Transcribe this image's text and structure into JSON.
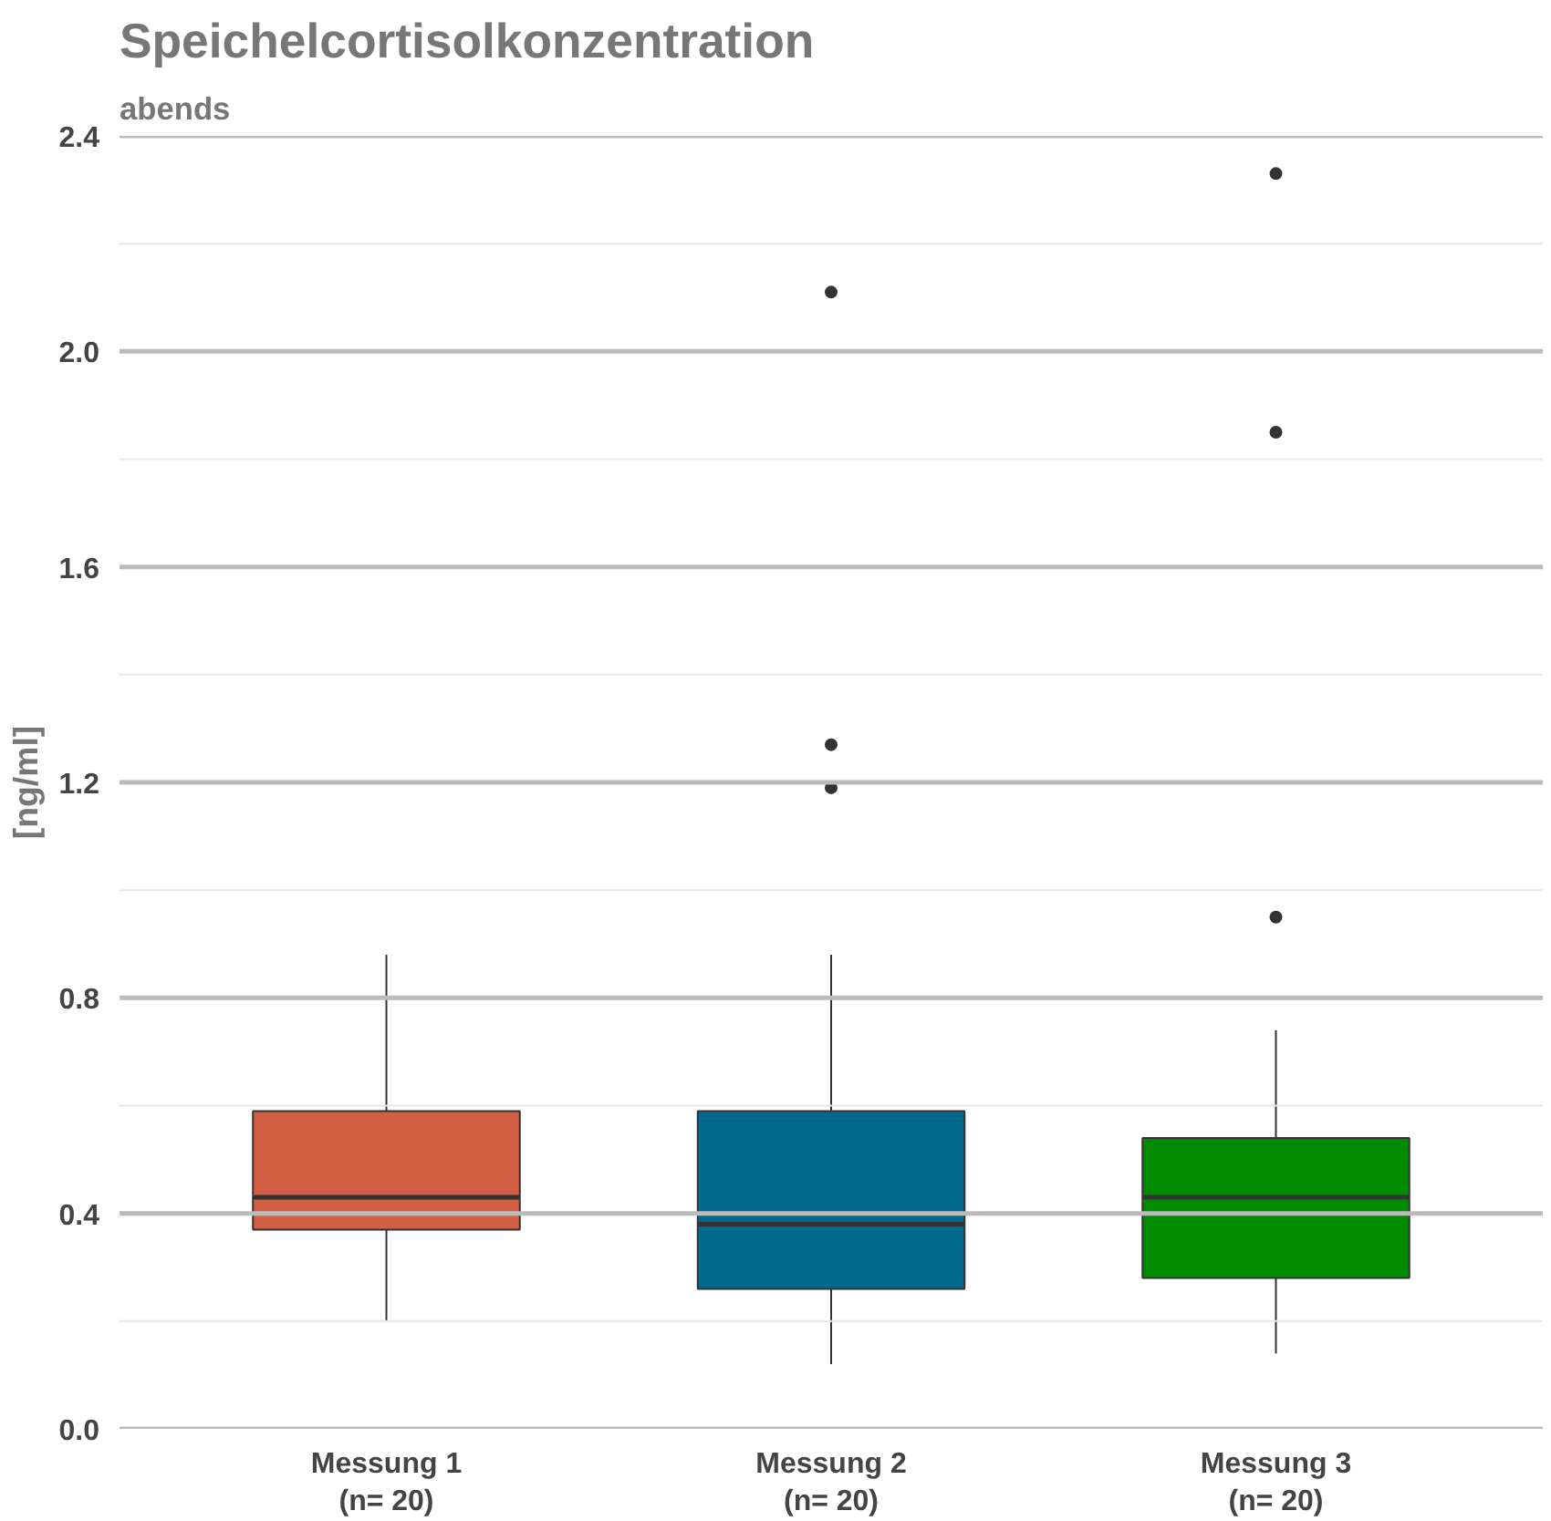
{
  "chart_data": {
    "type": "box",
    "title": "Speichelcortisolkonzentration",
    "subtitle": "abends",
    "ylabel": "[ng/ml]",
    "categories": [
      "Messung 1\n(n= 20)",
      "Messung 2\n(n= 20)",
      "Messung 3\n(n= 20)"
    ],
    "colors": [
      "#d35f45",
      "#006a8e",
      "#008c00"
    ],
    "boxes": [
      {
        "low": 0.2,
        "q1": 0.37,
        "median": 0.43,
        "q3": 0.59,
        "high": 0.88
      },
      {
        "low": 0.12,
        "q1": 0.26,
        "median": 0.38,
        "q3": 0.59,
        "high": 0.88,
        "outliers": [
          2.11,
          1.27,
          1.19
        ]
      },
      {
        "low": 0.14,
        "q1": 0.28,
        "median": 0.43,
        "q3": 0.54,
        "high": 0.74,
        "outliers": [
          2.33,
          1.85,
          0.95
        ]
      }
    ],
    "ylim": [
      0.0,
      2.4
    ],
    "yticks": [
      {
        "value": 0.0,
        "label": "0.0"
      },
      {
        "value": 0.2,
        "label": null
      },
      0.4,
      {
        "value": 0.6,
        "label": null
      },
      0.8,
      {
        "value": 1.0,
        "label": null
      },
      1.2,
      {
        "value": 1.4,
        "label": null
      },
      1.6,
      {
        "value": 1.8,
        "label": null
      },
      {
        "value": 2.0,
        "label": "2.0"
      },
      {
        "value": 2.2,
        "label": null
      },
      2.4
    ],
    "grid": "y"
  }
}
